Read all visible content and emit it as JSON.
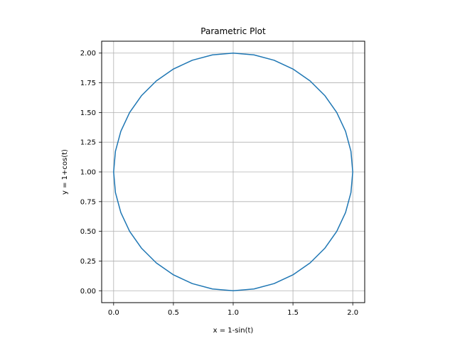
{
  "chart_data": {
    "type": "line",
    "title": "Parametric Plot",
    "xlabel": "x = 1-sin(t)",
    "ylabel": "y = 1+cos(t)",
    "xlim": [
      -0.1,
      2.1
    ],
    "ylim": [
      -0.1,
      2.1
    ],
    "xticks": [
      0.0,
      0.5,
      1.0,
      1.5,
      2.0
    ],
    "xtick_labels": [
      "0.0",
      "0.5",
      "1.0",
      "1.5",
      "2.0"
    ],
    "yticks": [
      0.0,
      0.25,
      0.5,
      0.75,
      1.0,
      1.25,
      1.5,
      1.75,
      2.0
    ],
    "ytick_labels": [
      "0.00",
      "0.25",
      "0.50",
      "0.75",
      "1.00",
      "1.25",
      "1.50",
      "1.75",
      "2.00"
    ],
    "grid": true,
    "series": [
      {
        "color": "#1f77b4",
        "x": [
          1.0,
          0.8264,
          0.658,
          0.5,
          0.3572,
          0.234,
          0.134,
          0.0603,
          0.0152,
          0.0,
          0.0152,
          0.0603,
          0.134,
          0.234,
          0.3572,
          0.5,
          0.658,
          0.8264,
          1.0,
          1.1736,
          1.342,
          1.5,
          1.6428,
          1.766,
          1.866,
          1.9397,
          1.9848,
          2.0,
          1.9848,
          1.9397,
          1.866,
          1.766,
          1.6428,
          1.5,
          1.342,
          1.1736,
          1.0
        ],
        "y": [
          2.0,
          1.9848,
          1.9397,
          1.866,
          1.766,
          1.6428,
          1.5,
          1.342,
          1.1736,
          1.0,
          0.8264,
          0.658,
          0.5,
          0.3572,
          0.234,
          0.134,
          0.0603,
          0.0152,
          0.0,
          0.0152,
          0.0603,
          0.134,
          0.234,
          0.3572,
          0.5,
          0.658,
          0.8264,
          1.0,
          1.1736,
          1.342,
          1.5,
          1.6428,
          1.766,
          1.866,
          1.9397,
          1.9848,
          2.0
        ]
      }
    ]
  }
}
